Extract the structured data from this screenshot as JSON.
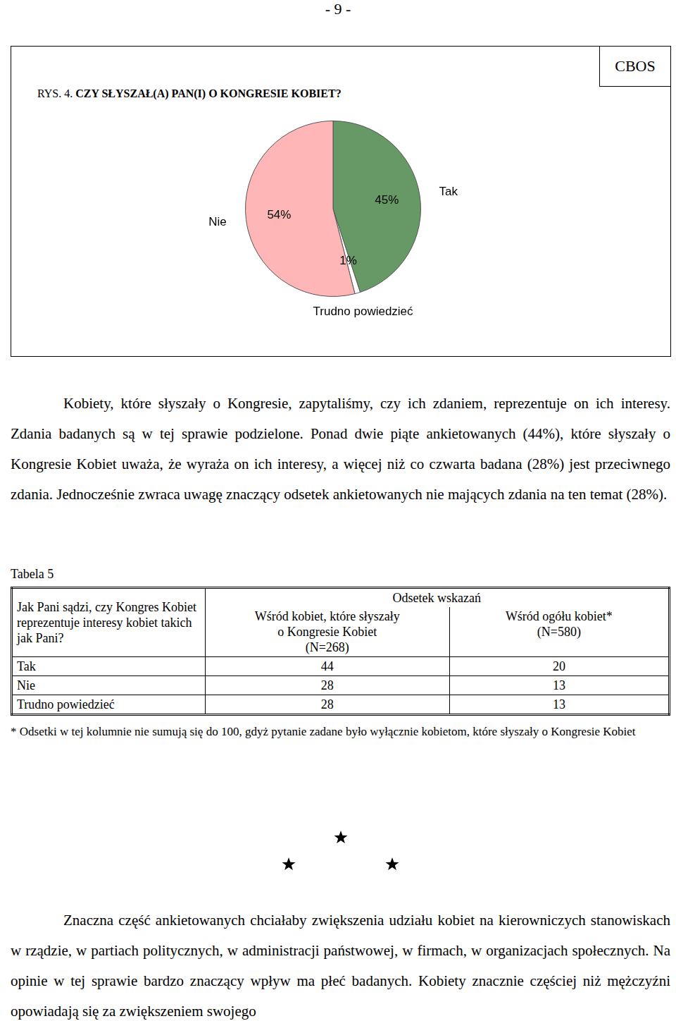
{
  "page_number": "- 9 -",
  "source": "CBOS",
  "chart_data": {
    "type": "pie",
    "title": "RYS. 4. CZY SŁYSZAŁ(A) PAN(I) O KONGRESIE KOBIET?",
    "categories": [
      "Tak",
      "Trudno powiedzieć",
      "Nie"
    ],
    "values": [
      45,
      1,
      54
    ],
    "value_labels": [
      "45%",
      "1%",
      "54%"
    ],
    "colors": [
      "#669966",
      "#ffffff",
      "#ffb6b6"
    ],
    "data_labels": true,
    "legend": "none"
  },
  "paragraph_1": "Kobiety, które słyszały o Kongresie, zapytaliśmy, czy ich zdaniem, reprezentuje on ich interesy. Zdania badanych są w tej sprawie podzielone. Ponad dwie piąte ankietowanych (44%), które słyszały o Kongresie Kobiet uważa, że wyraża on ich interesy, a więcej niż co czwarta badana (28%) jest przeciwnego zdania. Jednocześnie zwraca uwagę znaczący odsetek ankietowanych nie mających zdania na ten temat (28%).",
  "table": {
    "caption": "Tabela 5",
    "question": "Jak Pani sądzi, czy Kongres Kobiet reprezentuje interesy kobiet takich jak Pani?",
    "group_header": "Odsetek wskazań",
    "columns": [
      "Wśród kobiet, które słyszały\no Kongresie Kobiet\n(N=268)",
      "Wśród ogółu kobiet*\n(N=580)"
    ],
    "rows": [
      [
        "Tak",
        44,
        20
      ],
      [
        "Nie",
        28,
        13
      ],
      [
        "Trudno powiedzieć",
        28,
        13
      ]
    ],
    "footnote": "* Odsetki w tej kolumnie nie sumują się do 100, gdyż pytanie zadane było wyłącznie kobietom, które słyszały o Kongresie Kobiet"
  },
  "paragraph_2": "Znaczna część ankietowanych chciałaby zwiększenia udziału kobiet na kierowniczych stanowiskach w rządzie, w partiach politycznych, w administracji państwowej, w firmach, w organizacjach społecznych. Na opinie w tej sprawie bardzo znaczący wpływ ma płeć badanych. Kobiety znacznie częściej niż mężczyźni opowiadają się za zwiększeniem swojego"
}
